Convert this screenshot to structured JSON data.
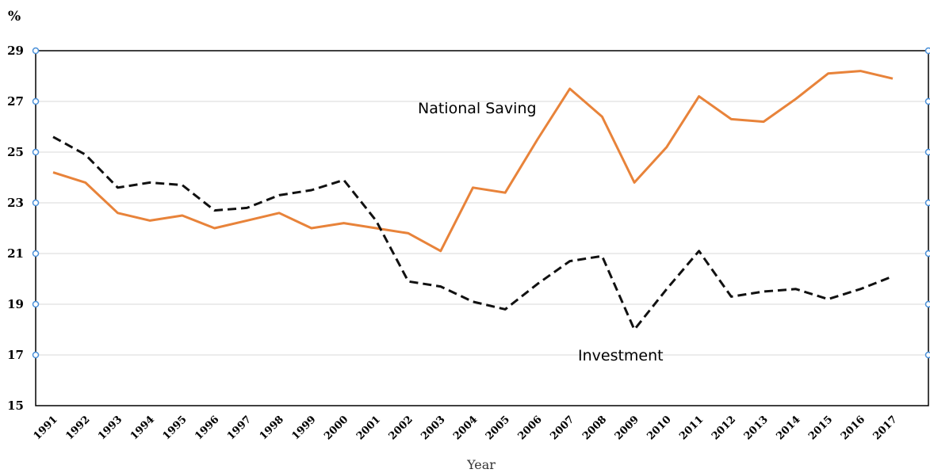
{
  "chart_data": {
    "type": "line",
    "y_unit": "%",
    "xlabel": "Year",
    "ylim": [
      15,
      29
    ],
    "yticks": [
      15,
      17,
      19,
      21,
      23,
      25,
      27,
      29
    ],
    "grid": true,
    "x": [
      "1991",
      "1992",
      "1993",
      "1994",
      "1995",
      "1996",
      "1997",
      "1998",
      "1999",
      "2000",
      "2001",
      "2002",
      "2003",
      "2004",
      "2005",
      "2006",
      "2007",
      "2008",
      "2009",
      "2010",
      "2011",
      "2012",
      "2013",
      "2014",
      "2015",
      "2016",
      "2017"
    ],
    "series": [
      {
        "name": "National Saving",
        "color": "#e8833a",
        "style": "solid",
        "values": [
          24.2,
          23.8,
          22.6,
          22.3,
          22.5,
          22.0,
          22.3,
          22.6,
          22.0,
          22.2,
          22.0,
          21.8,
          21.1,
          23.6,
          23.4,
          25.5,
          27.5,
          26.4,
          23.8,
          25.2,
          27.2,
          26.3,
          26.2,
          27.1,
          28.1,
          28.2,
          27.9
        ]
      },
      {
        "name": "Investment",
        "color": "#111111",
        "style": "dashed",
        "values": [
          25.6,
          24.9,
          23.6,
          23.8,
          23.7,
          22.7,
          22.8,
          23.3,
          23.5,
          23.9,
          22.3,
          19.9,
          19.7,
          19.1,
          18.8,
          19.8,
          20.7,
          20.9,
          18.0,
          19.6,
          21.1,
          19.3,
          19.5,
          19.6,
          19.2,
          19.6,
          20.1
        ]
      }
    ]
  }
}
